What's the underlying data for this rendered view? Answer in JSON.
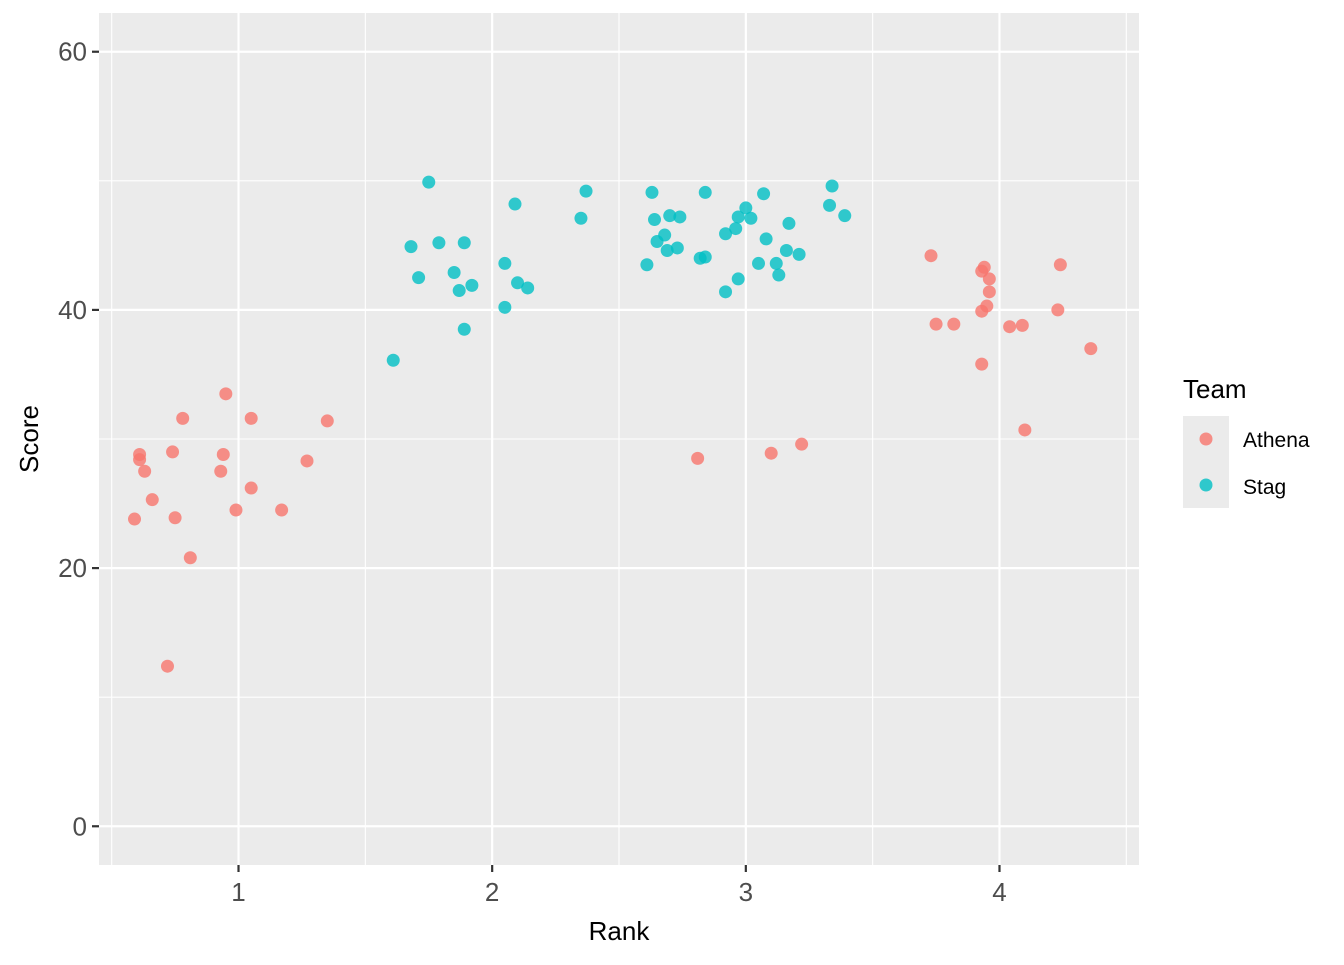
{
  "chart_data": {
    "type": "scatter",
    "xlabel": "Rank",
    "ylabel": "Score",
    "xlim": [
      0.45,
      4.55
    ],
    "ylim": [
      -3,
      63
    ],
    "x_ticks": [
      1,
      2,
      3,
      4
    ],
    "x_tick_labels": [
      "1",
      "2",
      "3",
      "4"
    ],
    "y_ticks": [
      0,
      20,
      40,
      60
    ],
    "y_tick_labels": [
      "0",
      "20",
      "40",
      "60"
    ],
    "grid": true,
    "legend": {
      "title": "Team",
      "placement": "right"
    },
    "series": [
      {
        "name": "Athena",
        "color": "#F8766D",
        "points": [
          [
            0.59,
            23.8
          ],
          [
            0.61,
            28.4
          ],
          [
            0.61,
            28.8
          ],
          [
            0.63,
            27.5
          ],
          [
            0.66,
            25.3
          ],
          [
            0.72,
            12.4
          ],
          [
            0.74,
            29.0
          ],
          [
            0.75,
            23.9
          ],
          [
            0.78,
            31.6
          ],
          [
            0.81,
            20.8
          ],
          [
            0.93,
            27.5
          ],
          [
            0.94,
            28.8
          ],
          [
            0.95,
            33.5
          ],
          [
            0.99,
            24.5
          ],
          [
            1.05,
            26.2
          ],
          [
            1.05,
            31.6
          ],
          [
            1.17,
            24.5
          ],
          [
            1.27,
            28.3
          ],
          [
            1.35,
            31.4
          ],
          [
            2.81,
            28.5
          ],
          [
            3.1,
            28.9
          ],
          [
            3.22,
            29.6
          ],
          [
            3.73,
            44.2
          ],
          [
            3.75,
            38.9
          ],
          [
            3.82,
            38.9
          ],
          [
            3.93,
            43.0
          ],
          [
            3.93,
            39.9
          ],
          [
            3.93,
            35.8
          ],
          [
            3.94,
            43.3
          ],
          [
            3.95,
            40.3
          ],
          [
            3.96,
            41.4
          ],
          [
            3.96,
            42.4
          ],
          [
            4.04,
            38.7
          ],
          [
            4.09,
            38.8
          ],
          [
            4.1,
            30.7
          ],
          [
            4.23,
            40.0
          ],
          [
            4.24,
            43.5
          ],
          [
            4.36,
            37.0
          ]
        ]
      },
      {
        "name": "Stag",
        "color": "#00BFC4",
        "points": [
          [
            1.61,
            36.1
          ],
          [
            1.68,
            44.9
          ],
          [
            1.71,
            42.5
          ],
          [
            1.75,
            49.9
          ],
          [
            1.79,
            45.2
          ],
          [
            1.85,
            42.9
          ],
          [
            1.87,
            41.5
          ],
          [
            1.89,
            45.2
          ],
          [
            1.89,
            38.5
          ],
          [
            1.92,
            41.9
          ],
          [
            2.05,
            40.2
          ],
          [
            2.05,
            43.6
          ],
          [
            2.09,
            48.2
          ],
          [
            2.1,
            42.1
          ],
          [
            2.14,
            41.7
          ],
          [
            2.35,
            47.1
          ],
          [
            2.37,
            49.2
          ],
          [
            2.61,
            43.5
          ],
          [
            2.63,
            49.1
          ],
          [
            2.64,
            47.0
          ],
          [
            2.65,
            45.3
          ],
          [
            2.68,
            45.8
          ],
          [
            2.69,
            44.6
          ],
          [
            2.7,
            47.3
          ],
          [
            2.73,
            44.8
          ],
          [
            2.74,
            47.2
          ],
          [
            2.82,
            44.0
          ],
          [
            2.84,
            49.1
          ],
          [
            2.84,
            44.1
          ],
          [
            2.92,
            45.9
          ],
          [
            2.92,
            41.4
          ],
          [
            2.96,
            46.3
          ],
          [
            2.97,
            47.2
          ],
          [
            2.97,
            42.4
          ],
          [
            3.0,
            47.9
          ],
          [
            3.02,
            47.1
          ],
          [
            3.05,
            43.6
          ],
          [
            3.07,
            49.0
          ],
          [
            3.08,
            45.5
          ],
          [
            3.12,
            43.6
          ],
          [
            3.13,
            42.7
          ],
          [
            3.16,
            44.6
          ],
          [
            3.17,
            46.7
          ],
          [
            3.21,
            44.3
          ],
          [
            3.33,
            48.1
          ],
          [
            3.34,
            49.6
          ],
          [
            3.39,
            47.3
          ]
        ]
      }
    ]
  }
}
